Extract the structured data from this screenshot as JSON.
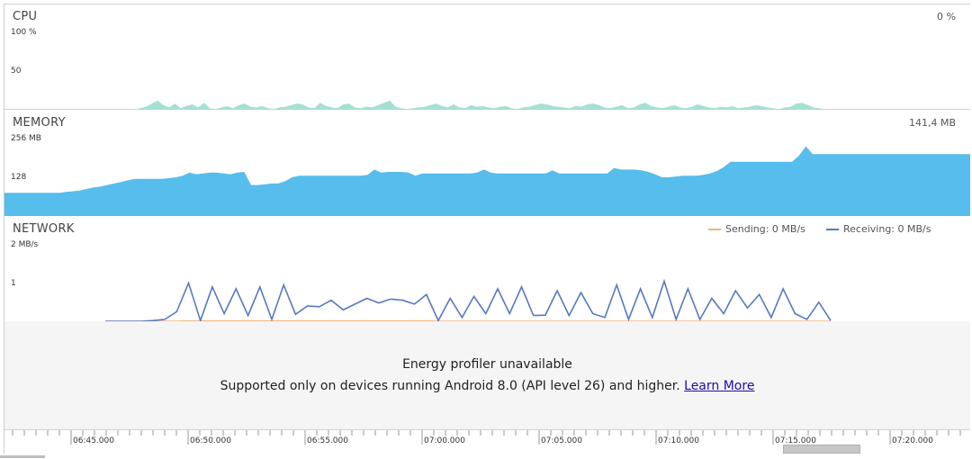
{
  "cpu": {
    "title": "CPU",
    "scale_top": "100 %",
    "scale_mid": "50",
    "readout": "0 %",
    "fill_color": "#a6e0d3",
    "samples": [
      0,
      0,
      0,
      0,
      0,
      0,
      2,
      4,
      8,
      12,
      6,
      3,
      8,
      2,
      5,
      7,
      3,
      9,
      2,
      1,
      3,
      5,
      2,
      6,
      8,
      4,
      3,
      5,
      2,
      1,
      3,
      4,
      6,
      8,
      7,
      3,
      2,
      9,
      5,
      3,
      2,
      7,
      8,
      3,
      2,
      4,
      3,
      6,
      9,
      12,
      4,
      2,
      1,
      2,
      3,
      4,
      6,
      8,
      5,
      3,
      7,
      3,
      2,
      6,
      4,
      5,
      3,
      2,
      4,
      5,
      2,
      1,
      3,
      4,
      6,
      8,
      7,
      5,
      4,
      3,
      2,
      5,
      4,
      7,
      8,
      6,
      3,
      2,
      4,
      6,
      2,
      3,
      7,
      9,
      5,
      3,
      2,
      4,
      6,
      3,
      2,
      4,
      7,
      5,
      3,
      2,
      4,
      3,
      5,
      2,
      3,
      4,
      6,
      5,
      3,
      2,
      1,
      3,
      4,
      8,
      9,
      6,
      3,
      2,
      0
    ]
  },
  "memory": {
    "title": "MEMORY",
    "scale_top": "256 MB",
    "scale_mid": "128",
    "readout": "141,4 MB",
    "fill_color": "#56bdec",
    "samples": [
      30,
      30,
      30,
      30,
      30,
      30,
      30,
      30,
      30,
      31,
      32,
      33,
      35,
      37,
      38,
      40,
      42,
      44,
      46,
      48,
      48,
      48,
      48,
      48,
      49,
      50,
      52,
      56,
      54,
      55,
      56,
      56,
      55,
      54,
      56,
      57,
      40,
      40,
      41,
      42,
      42,
      45,
      50,
      52,
      52,
      52,
      52,
      52,
      52,
      52,
      52,
      52,
      52,
      53,
      60,
      56,
      57,
      57,
      57,
      56,
      52,
      55,
      55,
      55,
      55,
      55,
      55,
      55,
      55,
      56,
      60,
      56,
      55,
      55,
      55,
      55,
      55,
      55,
      55,
      55,
      59,
      55,
      55,
      55,
      55,
      55,
      55,
      55,
      55,
      62,
      60,
      60,
      60,
      59,
      57,
      54,
      50,
      50,
      51,
      52,
      52,
      52,
      53,
      55,
      58,
      63,
      70,
      70,
      70,
      70,
      70,
      70,
      70,
      70,
      70,
      70,
      78,
      90,
      80,
      80,
      80,
      80,
      80,
      80,
      80,
      80,
      80,
      80,
      80,
      80,
      80,
      80,
      80,
      80,
      80,
      80,
      80,
      80,
      80,
      80,
      80,
      80
    ]
  },
  "network": {
    "title": "NETWORK",
    "scale_top": "2 MB/s",
    "scale_mid": "1",
    "legend": {
      "sending": "Sending: 0 MB/s",
      "receiving": "Receiving: 0 MB/s"
    },
    "sending_color": "#f0b37e",
    "receiving_color": "#5879bf",
    "receiving_samples": [
      0,
      0,
      0,
      0,
      0.02,
      0.05,
      0.25,
      1.0,
      0.02,
      0.9,
      0.2,
      0.85,
      0.15,
      0.9,
      0.05,
      0.95,
      0.18,
      0.4,
      0.38,
      0.55,
      0.3,
      0.45,
      0.6,
      0.48,
      0.58,
      0.55,
      0.45,
      0.7,
      0.02,
      0.6,
      0.1,
      0.65,
      0.2,
      0.85,
      0.2,
      0.9,
      0.15,
      0.16,
      0.8,
      0.15,
      0.75,
      0.2,
      0.1,
      0.95,
      0.05,
      0.85,
      0.1,
      1.05,
      0.05,
      0.85,
      0.05,
      0.6,
      0.2,
      0.8,
      0.35,
      0.7,
      0.1,
      0.85,
      0.2,
      0.05,
      0.5,
      0.02
    ],
    "sending_samples": [
      0,
      0,
      0,
      0,
      0,
      0,
      0,
      0.01,
      0.01,
      0.01,
      0.01,
      0.01,
      0.01,
      0.01,
      0.01,
      0.01,
      0.01,
      0.01,
      0.01,
      0.01,
      0.01,
      0.01,
      0.01,
      0.01,
      0.01,
      0.01,
      0.01,
      0.01,
      0,
      0,
      0,
      0,
      0,
      0,
      0,
      0,
      0,
      0,
      0,
      0,
      0,
      0,
      0,
      0,
      0,
      0,
      0,
      0,
      0,
      0,
      0,
      0,
      0,
      0,
      0,
      0,
      0,
      0,
      0,
      0,
      0,
      0
    ]
  },
  "energy": {
    "line1": "Energy profiler unavailable",
    "line2": "Supported only on devices running Android 8.0 (API level 26) and higher.",
    "link": "Learn More"
  },
  "timeline": {
    "labels": [
      "06:45.000",
      "06:50.000",
      "06:55.000",
      "07:00.000",
      "07:05.000",
      "07:10.000",
      "07:15.000",
      "07:20.000"
    ]
  }
}
